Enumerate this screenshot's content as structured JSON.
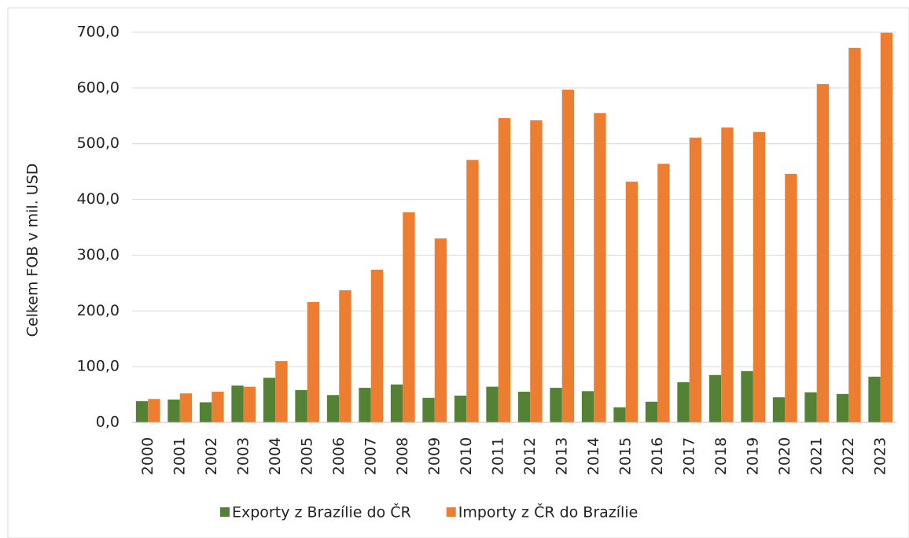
{
  "chart_data": {
    "type": "bar",
    "y_label": "Celkem FOB v mil. USD",
    "categories": [
      "2000",
      "2001",
      "2002",
      "2003",
      "2004",
      "2005",
      "2006",
      "2007",
      "2008",
      "2009",
      "2010",
      "2011",
      "2012",
      "2013",
      "2014",
      "2015",
      "2016",
      "2017",
      "2018",
      "2019",
      "2020",
      "2021",
      "2022",
      "2023"
    ],
    "series": [
      {
        "name": "Exporty z Brazílie do ČR",
        "color": "#548235",
        "values": [
          38,
          41,
          36,
          66,
          80,
          58,
          49,
          62,
          68,
          44,
          48,
          64,
          55,
          62,
          56,
          27,
          37,
          72,
          85,
          92,
          45,
          54,
          51,
          82
        ]
      },
      {
        "name": "Importy z ČR do Brazílie",
        "color": "#ed7d31",
        "values": [
          42,
          52,
          55,
          64,
          110,
          216,
          237,
          274,
          377,
          330,
          471,
          546,
          542,
          597,
          555,
          432,
          464,
          511,
          529,
          521,
          446,
          607,
          672,
          699
        ]
      }
    ],
    "ylim": [
      0,
      700
    ],
    "yticks": [
      {
        "value": 0,
        "label": "0,0"
      },
      {
        "value": 100,
        "label": "100,0"
      },
      {
        "value": 200,
        "label": "200,0"
      },
      {
        "value": 300,
        "label": "300,0"
      },
      {
        "value": 400,
        "label": "400,0"
      },
      {
        "value": 500,
        "label": "500,0"
      },
      {
        "value": 600,
        "label": "600,0"
      },
      {
        "value": 700,
        "label": "700,0"
      }
    ],
    "grid": true,
    "legend": "bottom"
  }
}
